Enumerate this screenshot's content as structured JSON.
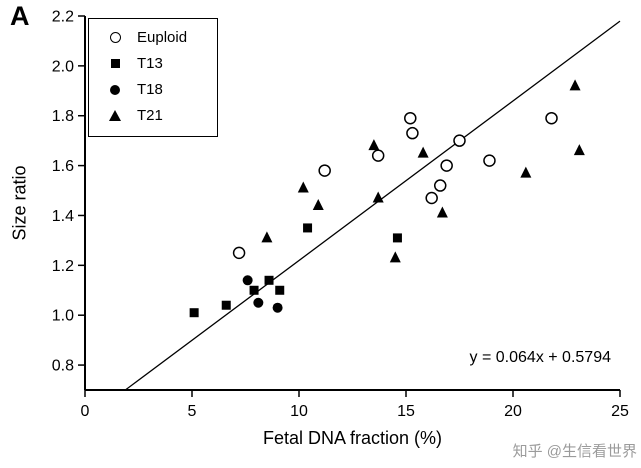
{
  "panel_label": "A",
  "watermark": "知乎 @生信看世界",
  "colors": {
    "marker": "#000000",
    "axis": "#000000",
    "watermark": "#9b9b9b",
    "background": "#ffffff"
  },
  "chart_data": {
    "type": "scatter",
    "title": "",
    "xlabel": "Fetal DNA fraction (%)",
    "ylabel": "Size ratio",
    "xlim": [
      0,
      25
    ],
    "ylim": [
      0.7,
      2.2
    ],
    "xticks": [
      0,
      5,
      10,
      15,
      20,
      25
    ],
    "yticks": [
      0.8,
      1.0,
      1.2,
      1.4,
      1.6,
      1.8,
      2.0,
      2.2
    ],
    "grid": false,
    "legend_position": "upper-left-inside",
    "annotation": "y = 0.064x + 0.5794",
    "regression": {
      "slope": 0.064,
      "intercept": 0.5794
    },
    "series": [
      {
        "name": "Euploid",
        "marker": "open-circle",
        "points": [
          [
            7.2,
            1.25
          ],
          [
            11.2,
            1.58
          ],
          [
            13.7,
            1.64
          ],
          [
            15.2,
            1.79
          ],
          [
            15.3,
            1.73
          ],
          [
            16.2,
            1.47
          ],
          [
            16.6,
            1.52
          ],
          [
            16.9,
            1.6
          ],
          [
            17.5,
            1.7
          ],
          [
            18.9,
            1.62
          ],
          [
            21.8,
            1.79
          ]
        ]
      },
      {
        "name": "T13",
        "marker": "filled-square",
        "points": [
          [
            5.1,
            1.01
          ],
          [
            6.6,
            1.04
          ],
          [
            7.9,
            1.1
          ],
          [
            8.6,
            1.14
          ],
          [
            9.1,
            1.1
          ],
          [
            10.4,
            1.35
          ],
          [
            14.6,
            1.31
          ]
        ]
      },
      {
        "name": "T18",
        "marker": "filled-circle",
        "points": [
          [
            7.6,
            1.14
          ],
          [
            8.1,
            1.05
          ],
          [
            9.0,
            1.03
          ]
        ]
      },
      {
        "name": "T21",
        "marker": "filled-triangle",
        "points": [
          [
            8.5,
            1.31
          ],
          [
            10.2,
            1.51
          ],
          [
            10.9,
            1.44
          ],
          [
            13.5,
            1.68
          ],
          [
            13.7,
            1.47
          ],
          [
            14.5,
            1.23
          ],
          [
            15.8,
            1.65
          ],
          [
            16.7,
            1.41
          ],
          [
            20.6,
            1.57
          ],
          [
            22.9,
            1.92
          ],
          [
            23.1,
            1.66
          ]
        ]
      }
    ]
  }
}
